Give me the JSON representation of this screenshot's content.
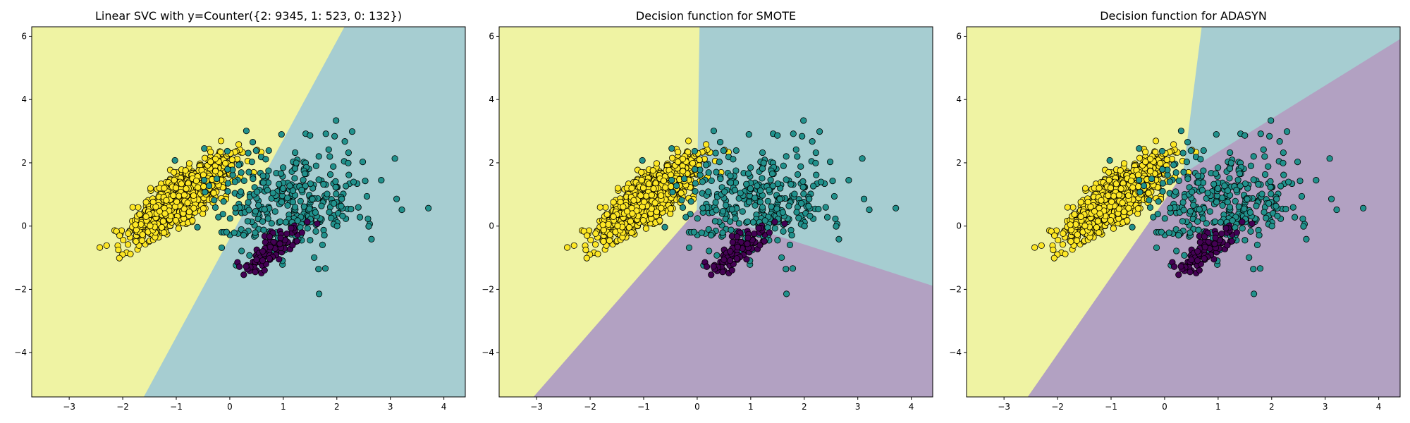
{
  "chart_data": [
    {
      "type": "scatter",
      "title": "Linear SVC with y=Counter({2: 9345, 1: 523, 0: 132})",
      "xlabel": "",
      "ylabel": "",
      "xlim": [
        -3.7,
        4.4
      ],
      "ylim": [
        -5.4,
        6.3
      ],
      "xticks": [
        -3,
        -2,
        -1,
        0,
        1,
        2,
        3,
        4
      ],
      "yticks": [
        -4,
        -2,
        0,
        2,
        4,
        6
      ],
      "grid": false,
      "legend": "none",
      "class_colors": {
        "0": "#440154",
        "1": "#21918c",
        "2": "#fde725"
      },
      "region_colors": {
        "0": "#b2a1c2",
        "1": "#a6cdd1",
        "2": "#eff3a3"
      },
      "decision_regions": [
        {
          "class": 2,
          "polygon": [
            [
              -3.7,
              -5.4
            ],
            [
              -1.6,
              -5.4
            ],
            [
              2.15,
              6.3
            ],
            [
              -3.7,
              6.3
            ]
          ]
        },
        {
          "class": 1,
          "polygon": [
            [
              -1.6,
              -5.4
            ],
            [
              4.4,
              -5.4
            ],
            [
              4.4,
              6.3
            ],
            [
              2.15,
              6.3
            ]
          ]
        }
      ],
      "series": [
        {
          "class": 2,
          "cluster": {
            "center": [
              -0.9,
              0.9
            ],
            "slope": 1.47,
            "count": 1400,
            "spread_along": 0.7,
            "spread_perp": 0.22
          }
        },
        {
          "class": 1,
          "cluster": {
            "center": [
              1.1,
              0.8
            ],
            "slope": 0.05,
            "count": 350,
            "spread_along": 0.75,
            "spread_perp": 0.85
          }
        },
        {
          "class": 0,
          "cluster": {
            "center": [
              0.75,
              -0.8
            ],
            "slope": 1.4,
            "count": 100,
            "spread_along": 0.45,
            "spread_perp": 0.14
          }
        }
      ]
    },
    {
      "type": "scatter",
      "title": "Decision function for SMOTE",
      "xlabel": "",
      "ylabel": "",
      "xlim": [
        -3.7,
        4.4
      ],
      "ylim": [
        -5.4,
        6.3
      ],
      "xticks": [
        -3,
        -2,
        -1,
        0,
        1,
        2,
        3,
        4
      ],
      "yticks": [
        -4,
        -2,
        0,
        2,
        4,
        6
      ],
      "grid": false,
      "legend": "none",
      "class_colors": {
        "0": "#440154",
        "1": "#21918c",
        "2": "#fde725"
      },
      "region_colors": {
        "0": "#b2a1c2",
        "1": "#a6cdd1",
        "2": "#eff3a3"
      },
      "decision_regions": [
        {
          "class": 2,
          "polygon": [
            [
              -3.7,
              -5.4
            ],
            [
              -3.05,
              -5.4
            ],
            [
              0.0,
              0.5
            ],
            [
              0.05,
              6.3
            ],
            [
              -3.7,
              6.3
            ]
          ]
        },
        {
          "class": 1,
          "polygon": [
            [
              0.05,
              6.3
            ],
            [
              4.4,
              6.3
            ],
            [
              4.4,
              -1.9
            ],
            [
              0.0,
              0.5
            ]
          ]
        },
        {
          "class": 0,
          "polygon": [
            [
              -3.05,
              -5.4
            ],
            [
              4.4,
              -5.4
            ],
            [
              4.4,
              -1.9
            ],
            [
              0.0,
              0.5
            ]
          ]
        }
      ],
      "series": [
        {
          "class": 2,
          "cluster": {
            "center": [
              -0.9,
              0.9
            ],
            "slope": 1.47,
            "count": 1400,
            "spread_along": 0.7,
            "spread_perp": 0.22
          }
        },
        {
          "class": 1,
          "cluster": {
            "center": [
              1.1,
              0.8
            ],
            "slope": 0.05,
            "count": 350,
            "spread_along": 0.75,
            "spread_perp": 0.85
          }
        },
        {
          "class": 0,
          "cluster": {
            "center": [
              0.75,
              -0.8
            ],
            "slope": 1.4,
            "count": 100,
            "spread_along": 0.45,
            "spread_perp": 0.14
          }
        }
      ]
    },
    {
      "type": "scatter",
      "title": "Decision function for ADASYN",
      "xlabel": "",
      "ylabel": "",
      "xlim": [
        -3.7,
        4.4
      ],
      "ylim": [
        -5.4,
        6.3
      ],
      "xticks": [
        -3,
        -2,
        -1,
        0,
        1,
        2,
        3,
        4
      ],
      "yticks": [
        -4,
        -2,
        0,
        2,
        4,
        6
      ],
      "grid": false,
      "legend": "none",
      "class_colors": {
        "0": "#440154",
        "1": "#21918c",
        "2": "#fde725"
      },
      "region_colors": {
        "0": "#b2a1c2",
        "1": "#a6cdd1",
        "2": "#eff3a3"
      },
      "decision_regions": [
        {
          "class": 2,
          "polygon": [
            [
              -3.7,
              -5.4
            ],
            [
              -2.55,
              -5.4
            ],
            [
              0.35,
              1.65
            ],
            [
              0.7,
              6.3
            ],
            [
              -3.7,
              6.3
            ]
          ]
        },
        {
          "class": 1,
          "polygon": [
            [
              0.7,
              6.3
            ],
            [
              4.4,
              6.3
            ],
            [
              4.4,
              5.9
            ],
            [
              0.35,
              1.65
            ]
          ]
        },
        {
          "class": 0,
          "polygon": [
            [
              -2.55,
              -5.4
            ],
            [
              4.4,
              -5.4
            ],
            [
              4.4,
              5.9
            ],
            [
              0.35,
              1.65
            ]
          ]
        }
      ],
      "series": [
        {
          "class": 2,
          "cluster": {
            "center": [
              -0.9,
              0.9
            ],
            "slope": 1.47,
            "count": 1400,
            "spread_along": 0.7,
            "spread_perp": 0.22
          }
        },
        {
          "class": 1,
          "cluster": {
            "center": [
              1.1,
              0.8
            ],
            "slope": 0.05,
            "count": 350,
            "spread_along": 0.75,
            "spread_perp": 0.85
          }
        },
        {
          "class": 0,
          "cluster": {
            "center": [
              0.75,
              -0.8
            ],
            "slope": 1.4,
            "count": 100,
            "spread_along": 0.45,
            "spread_perp": 0.14
          }
        }
      ]
    }
  ]
}
